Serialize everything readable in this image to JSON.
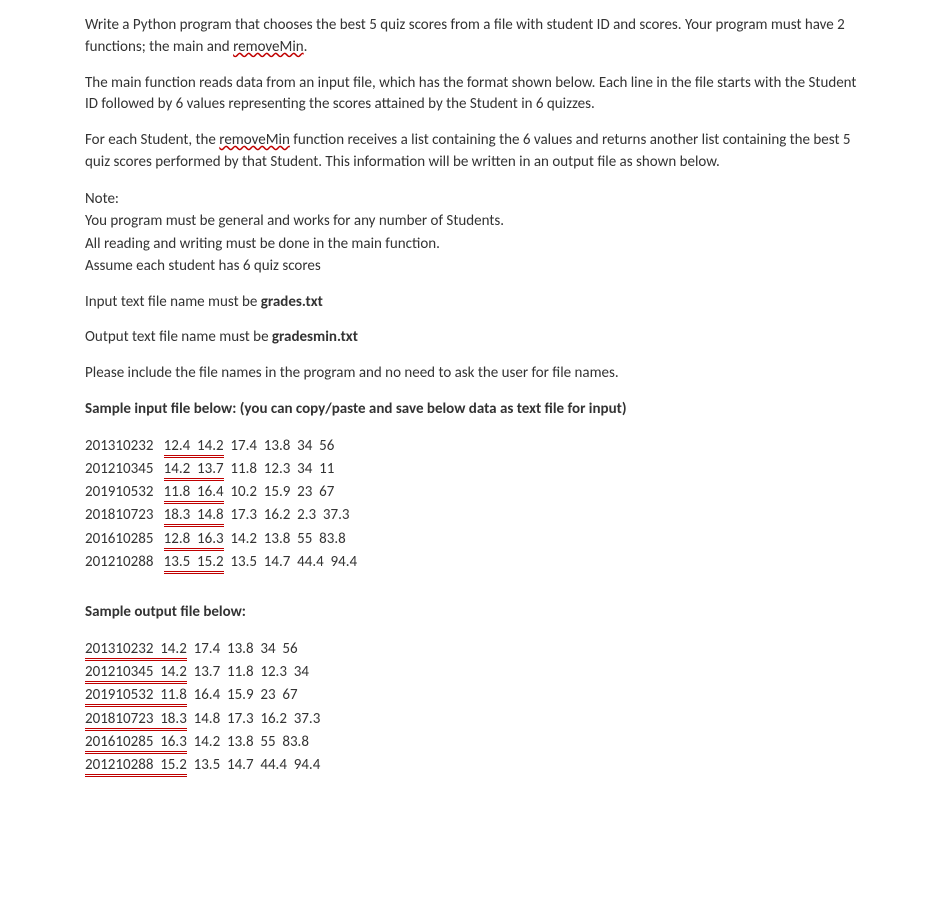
{
  "p1_a": "Write a Python program that chooses the best 5 quiz scores from a file with student ID and scores. Your program must have 2 functions; the main and ",
  "p1_sq": "removeMin",
  "p1_b": ".",
  "p2": "The main function reads data from an input file, which has the format shown below.  Each line in the file starts with the Student ID followed by 6 values representing the scores attained by the Student in 6 quizzes.",
  "p3_a": "For each Student, the ",
  "p3_sq": "removeMin",
  "p3_b": " function receives a list containing the 6 values and returns another list containing the best 5 quiz scores performed by that Student. This information will be written in an output file as shown below.",
  "note_title": "Note:",
  "note_l1": "You program must be general and works for any number of Students.",
  "note_l2": "All reading and writing must be done in the main function.",
  "note_l3": "Assume each student has 6 quiz scores",
  "p5_a": "Input text file name must be ",
  "p5_b": "grades.txt",
  "p6_a": "Output text file name must be ",
  "p6_b": "gradesmin.txt",
  "p7": "Please include the file names in the program and no need to ask the user for file names.",
  "p8": "Sample input file below: (you can copy/paste and save below data as text file for input)",
  "in_r1_a": "201310232   ",
  "in_r1_u": "12.4  14.2",
  "in_r1_b": "  17.4  13.8  34  56",
  "in_r2_a": "201210345   ",
  "in_r2_u": "14.2  13.7",
  "in_r2_b": "  11.8  12.3  34  11",
  "in_r3_a": "201910532   ",
  "in_r3_u": "11.8  16.4",
  "in_r3_b": "  10.2  15.9  23  67",
  "in_r4_a": "201810723   ",
  "in_r4_u": "18.3  14.8",
  "in_r4_b": "  17.3  16.2  2.3  37.3",
  "in_r5_a": "201610285   ",
  "in_r5_u": "12.8  16.3",
  "in_r5_b": "  14.2  13.8  55  83.8",
  "in_r6_a": "201210288   ",
  "in_r6_u": "13.5  15.2",
  "in_r6_b": "  13.5  14.7  44.4  94.4",
  "p9": "Sample output file below:",
  "out_r1_u": "201310232  14.2",
  "out_r1_b": "  17.4  13.8  34  56",
  "out_r2_u": "201210345  14.2",
  "out_r2_b": "  13.7  11.8  12.3  34",
  "out_r3_u": "201910532  11.8",
  "out_r3_b": "  16.4  15.9  23  67",
  "out_r4_u": "201810723  18.3",
  "out_r4_b": "  14.8  17.3  16.2  37.3",
  "out_r5_u": "201610285  16.3",
  "out_r5_b": "  14.2  13.8  55  83.8",
  "out_r6_u": "201210288  15.2",
  "out_r6_b": "  13.5  14.7  44.4  94.4"
}
